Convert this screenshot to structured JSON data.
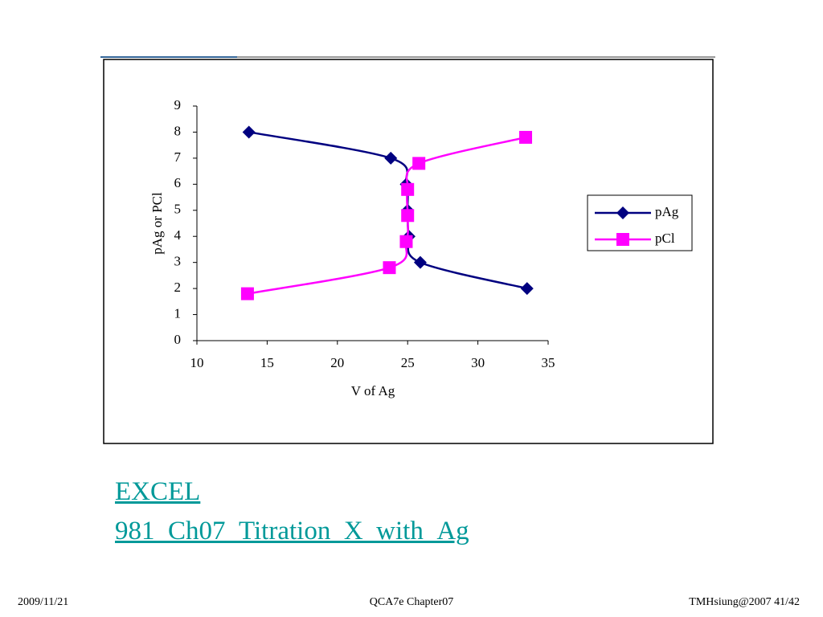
{
  "chart_data": {
    "type": "line",
    "smooth": true,
    "y_label": "pAg or PCl",
    "x_label": "V of Ag",
    "xlim": [
      10,
      35
    ],
    "xticks": [
      10,
      15,
      20,
      25,
      30,
      35
    ],
    "ylim": [
      0,
      9
    ],
    "yticks": [
      0,
      1,
      2,
      3,
      4,
      5,
      6,
      7,
      8,
      9
    ],
    "legend": "right",
    "series": [
      {
        "name": "pAg",
        "color": "#000080",
        "marker": "diamond",
        "x": [
          13.7,
          23.8,
          24.9,
          25.0,
          25.1,
          25.9,
          33.5
        ],
        "values": [
          8,
          7,
          6,
          5,
          4,
          3,
          2
        ]
      },
      {
        "name": "pCl",
        "color": "#ff00ff",
        "marker": "square",
        "x": [
          13.6,
          23.7,
          24.9,
          25.0,
          25.0,
          25.8,
          33.4
        ],
        "values": [
          1.8,
          2.8,
          3.8,
          4.8,
          5.8,
          6.8,
          7.8
        ]
      }
    ]
  },
  "slide": {
    "link": [
      "EXCEL",
      "981_Ch07_Titration_X_with_Ag"
    ],
    "footer": {
      "date": "2009/11/21",
      "center": "QCA7e Chapter07",
      "right": "TMHsiung@2007 41/42"
    }
  }
}
